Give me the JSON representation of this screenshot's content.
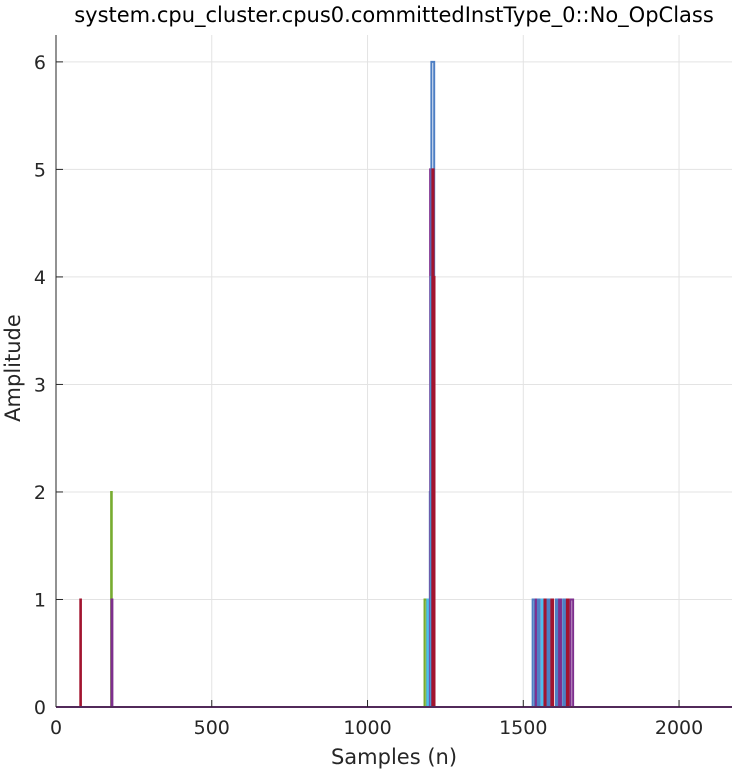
{
  "chart_data": {
    "type": "line",
    "title": "system.cpu_cluster.cpus0.committedInstType_0::No_OpClass",
    "xlabel": "Samples (n)",
    "ylabel": "Amplitude",
    "xlim": [
      0,
      2170
    ],
    "ylim": [
      0,
      6.25
    ],
    "xticks": [
      0,
      500,
      1000,
      1500,
      2000
    ],
    "xtick_labels": [
      "0",
      "500",
      "1000",
      "1500",
      "2000"
    ],
    "yticks": [
      0,
      1,
      2,
      3,
      4,
      5,
      6
    ],
    "ytick_labels": [
      "0",
      "1",
      "2",
      "3",
      "4",
      "5",
      "6"
    ],
    "grid": true,
    "legend": "none",
    "colors": {
      "blue": "#4e7fc4",
      "orange": "#d95319",
      "yellow": "#edb120",
      "purple": "#7e2f8e",
      "green": "#77ac30",
      "cyan": "#4dbeee",
      "red": "#a2142f"
    },
    "series": [
      {
        "color_key": "red",
        "x": [
          0,
          78,
          78,
          80,
          80,
          2170
        ],
        "values": [
          0,
          0,
          1,
          1,
          0,
          0
        ]
      },
      {
        "color_key": "green",
        "x": [
          0,
          177,
          177,
          179,
          179,
          2170
        ],
        "values": [
          0,
          0,
          2,
          2,
          0,
          0
        ]
      },
      {
        "color_key": "purple",
        "x": [
          0,
          178,
          178,
          181,
          181,
          2170
        ],
        "values": [
          0,
          0,
          1,
          1,
          0,
          0
        ]
      },
      {
        "color_key": "green",
        "x": [
          0,
          1183,
          1183,
          1190,
          1190,
          2170
        ],
        "values": [
          0,
          0,
          1,
          1,
          0,
          0
        ]
      },
      {
        "color_key": "cyan",
        "x": [
          0,
          1192,
          1192,
          1198,
          1198,
          2170
        ],
        "values": [
          0,
          0,
          1,
          1,
          0,
          0
        ]
      },
      {
        "color_key": "blue",
        "x": [
          0,
          1200,
          1200,
          1204,
          1204,
          2170
        ],
        "values": [
          0,
          0,
          2,
          2,
          0,
          0
        ]
      },
      {
        "color_key": "purple",
        "x": [
          0,
          1201,
          1201,
          1205,
          1205,
          2170
        ],
        "values": [
          0,
          0,
          5,
          5,
          0,
          0
        ]
      },
      {
        "color_key": "cyan",
        "x": [
          0,
          1203,
          1203,
          1207,
          1207,
          2170
        ],
        "values": [
          0,
          0,
          4,
          4,
          0,
          0
        ]
      },
      {
        "color_key": "blue",
        "x": [
          0,
          1205,
          1205,
          1214,
          1214,
          2170
        ],
        "values": [
          0,
          0,
          6,
          6,
          0,
          0
        ]
      },
      {
        "color_key": "red",
        "x": [
          0,
          1208,
          1208,
          1212,
          1212,
          2170
        ],
        "values": [
          0,
          0,
          5,
          5,
          0,
          0
        ]
      },
      {
        "color_key": "red",
        "x": [
          0,
          1212,
          1212,
          1215,
          1215,
          2170
        ],
        "values": [
          0,
          0,
          4,
          4,
          0,
          0
        ]
      },
      {
        "color_key": "blue",
        "x": [
          0,
          1530,
          1530,
          1537,
          1537,
          2170
        ],
        "values": [
          0,
          0,
          1,
          1,
          0,
          0
        ]
      },
      {
        "color_key": "purple",
        "x": [
          0,
          1540,
          1540,
          1545,
          1545,
          2170
        ],
        "values": [
          0,
          0,
          1,
          1,
          0,
          0
        ]
      },
      {
        "color_key": "blue",
        "x": [
          0,
          1547,
          1547,
          1553,
          1553,
          2170
        ],
        "values": [
          0,
          0,
          1,
          1,
          0,
          0
        ]
      },
      {
        "color_key": "cyan",
        "x": [
          0,
          1560,
          1560,
          1566,
          1566,
          2170
        ],
        "values": [
          0,
          0,
          1,
          1,
          0,
          0
        ]
      },
      {
        "color_key": "red",
        "x": [
          0,
          1568,
          1568,
          1574,
          1574,
          2170
        ],
        "values": [
          0,
          0,
          1,
          1,
          0,
          0
        ]
      },
      {
        "color_key": "blue",
        "x": [
          0,
          1578,
          1578,
          1584,
          1584,
          2170
        ],
        "values": [
          0,
          0,
          1,
          1,
          0,
          0
        ]
      },
      {
        "color_key": "red",
        "x": [
          0,
          1590,
          1590,
          1596,
          1596,
          2170
        ],
        "values": [
          0,
          0,
          1,
          1,
          0,
          0
        ]
      },
      {
        "color_key": "blue",
        "x": [
          0,
          1605,
          1605,
          1611,
          1611,
          2170
        ],
        "values": [
          0,
          0,
          1,
          1,
          0,
          0
        ]
      },
      {
        "color_key": "purple",
        "x": [
          0,
          1615,
          1615,
          1621,
          1621,
          2170
        ],
        "values": [
          0,
          0,
          1,
          1,
          0,
          0
        ]
      },
      {
        "color_key": "blue",
        "x": [
          0,
          1628,
          1628,
          1634,
          1634,
          2170
        ],
        "values": [
          0,
          0,
          1,
          1,
          0,
          0
        ]
      },
      {
        "color_key": "red",
        "x": [
          0,
          1640,
          1640,
          1646,
          1646,
          2170
        ],
        "values": [
          0,
          0,
          1,
          1,
          0,
          0
        ]
      },
      {
        "color_key": "purple",
        "x": [
          0,
          1652,
          1652,
          1660,
          1660,
          2170
        ],
        "values": [
          0,
          0,
          1,
          1,
          0,
          0
        ]
      }
    ]
  }
}
